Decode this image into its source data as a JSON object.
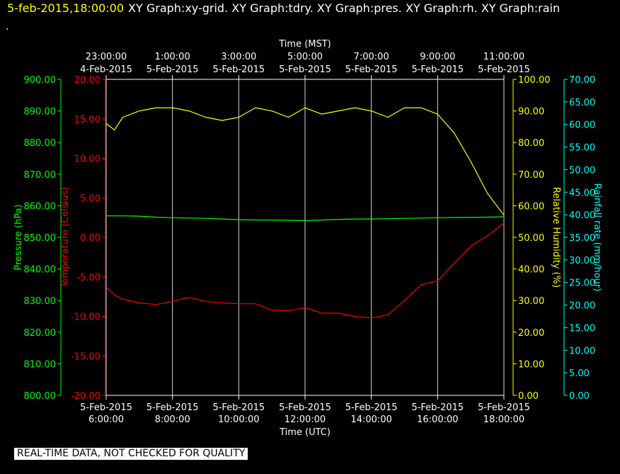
{
  "header": {
    "timestamp": "5-feb-2015,18:00:00",
    "graphs": "XY Graph:xy-grid.  XY Graph:tdry.  XY Graph:pres.  XY Graph:rh.  XY Graph:rain",
    "continuation": "."
  },
  "footer": {
    "notice": "REAL-TIME DATA, NOT CHECKED FOR QUALITY"
  },
  "colors": {
    "background": "#000000",
    "temperature": "#ff0000",
    "pressure": "#00ff00",
    "humidity": "#ffff00",
    "rainfall": "#00ffff",
    "grid": "#ffffff"
  },
  "chart_data": {
    "type": "line",
    "xlabel_bottom": "Time (UTC)",
    "xlabel_top": "Time (MST)",
    "x_range_utc": [
      "5-Feb-2015 06:00:00",
      "5-Feb-2015 18:00:00"
    ],
    "bottom_ticks": [
      {
        "time": "6:00:00",
        "date": "5-Feb-2015"
      },
      {
        "time": "8:00:00",
        "date": "5-Feb-2015"
      },
      {
        "time": "10:00:00",
        "date": "5-Feb-2015"
      },
      {
        "time": "12:00:00",
        "date": "5-Feb-2015"
      },
      {
        "time": "14:00:00",
        "date": "5-Feb-2015"
      },
      {
        "time": "16:00:00",
        "date": "5-Feb-2015"
      },
      {
        "time": "18:00:00",
        "date": "5-Feb-2015"
      }
    ],
    "top_ticks": [
      {
        "time": "23:00:00",
        "date": "4-Feb-2015"
      },
      {
        "time": "1:00:00",
        "date": "5-Feb-2015"
      },
      {
        "time": "3:00:00",
        "date": "5-Feb-2015"
      },
      {
        "time": "5:00:00",
        "date": "5-Feb-2015"
      },
      {
        "time": "7:00:00",
        "date": "5-Feb-2015"
      },
      {
        "time": "9:00:00",
        "date": "5-Feb-2015"
      },
      {
        "time": "11:00:00",
        "date": "5-Feb-2015"
      }
    ],
    "grid": "vertical",
    "axes": {
      "pressure": {
        "label": "Pressure (hPa)",
        "range": [
          800,
          900
        ],
        "ticks": [
          "800.00",
          "810.00",
          "820.00",
          "830.00",
          "840.00",
          "850.00",
          "860.00",
          "870.00",
          "880.00",
          "890.00",
          "900.00"
        ]
      },
      "temperature": {
        "label": "Temperature (Celsius)",
        "range": [
          -20,
          20
        ],
        "ticks": [
          "-20.00",
          "-15.00",
          "-10.00",
          "-5.00",
          "0.00",
          "5.00",
          "10.00",
          "15.00",
          "20.00"
        ]
      },
      "humidity": {
        "label": "Relative Humidity (%)",
        "range": [
          0,
          100
        ],
        "ticks": [
          "0.00",
          "10.00",
          "20.00",
          "30.00",
          "40.00",
          "50.00",
          "60.00",
          "70.00",
          "80.00",
          "90.00",
          "100.00"
        ]
      },
      "rainfall": {
        "label": "Rainfall rate (mm/hour)",
        "range": [
          0,
          70
        ],
        "ticks": [
          "0.00",
          "5.00",
          "10.00",
          "15.00",
          "20.00",
          "25.00",
          "30.00",
          "35.00",
          "40.00",
          "45.00",
          "50.00",
          "55.00",
          "60.00",
          "65.00",
          "70.00"
        ]
      }
    },
    "x_hours_utc": [
      6,
      6.25,
      6.5,
      7,
      7.5,
      8,
      8.5,
      9,
      9.5,
      10,
      10.5,
      11,
      11.5,
      12,
      12.5,
      13,
      13.5,
      14,
      14.5,
      15,
      15.5,
      16,
      16.5,
      17,
      17.5,
      18
    ],
    "series": [
      {
        "name": "Temperature (Celsius)",
        "axis": "temperature",
        "values": [
          -6.3,
          -7.3,
          -7.8,
          -8.3,
          -8.5,
          -8.1,
          -7.6,
          -8.1,
          -8.3,
          -8.4,
          -8.4,
          -9.2,
          -9.3,
          -8.9,
          -9.6,
          -9.6,
          -10.0,
          -10.2,
          -9.8,
          -8.0,
          -6.0,
          -5.5,
          -3.3,
          -1.1,
          0.2,
          1.8
        ]
      },
      {
        "name": "Pressure (hPa)",
        "axis": "pressure",
        "values": [
          856.8,
          856.8,
          856.8,
          856.7,
          856.4,
          856.2,
          856.1,
          856.0,
          855.8,
          855.6,
          855.5,
          855.5,
          855.4,
          855.3,
          855.5,
          855.7,
          855.8,
          855.8,
          855.9,
          856.0,
          856.1,
          856.2,
          856.3,
          856.3,
          856.4,
          856.5
        ]
      },
      {
        "name": "Relative Humidity (%)",
        "axis": "humidity",
        "values": [
          86,
          84,
          88,
          90,
          91,
          91,
          90,
          88,
          87,
          88,
          91,
          90,
          88,
          91,
          89,
          90,
          91,
          90,
          88,
          91,
          91,
          89,
          83,
          74,
          64,
          57
        ]
      }
    ]
  }
}
